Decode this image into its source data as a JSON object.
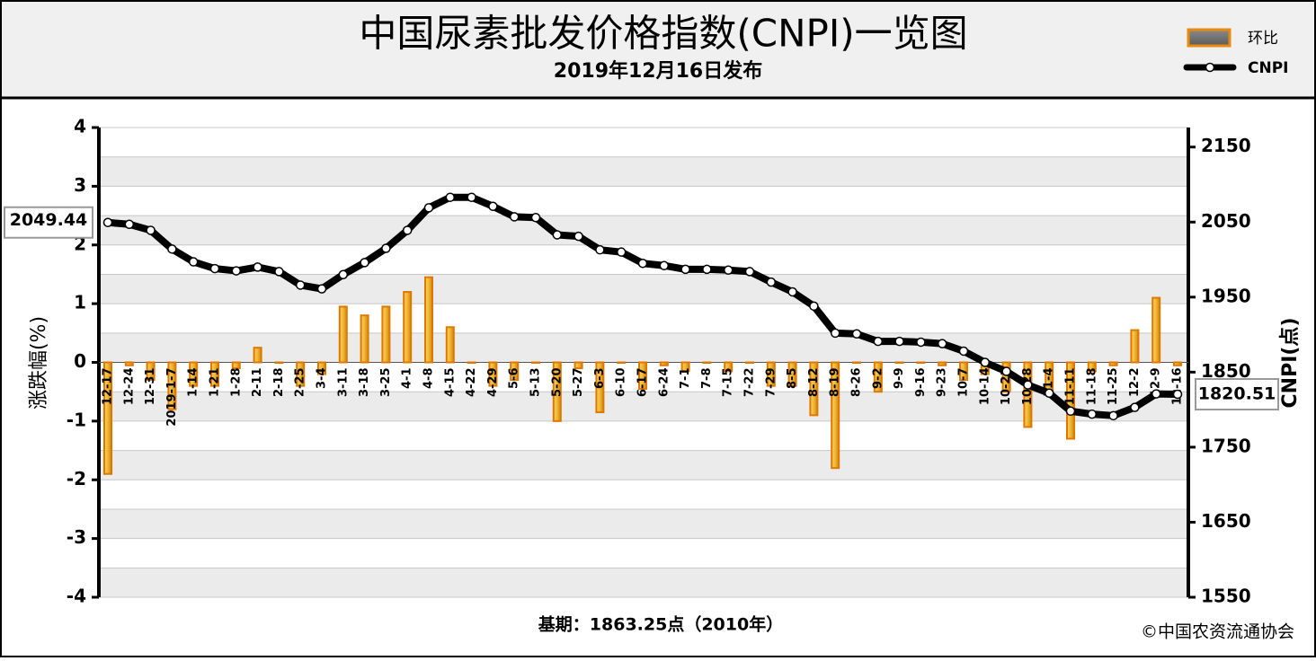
{
  "chart_data": {
    "type": "bar-line",
    "title": "中国尿素批发价格指数(CNPI)一览图",
    "subtitle": "2019年12月16日发布",
    "ylabel": "涨跌幅(%)",
    "y2label": "CNPI(点)",
    "footnote": "基期：1863.25点（2010年）",
    "source": "©中国农资流通协会",
    "categories": [
      "12-17",
      "12-24",
      "12-31",
      "2019-1-7",
      "1-14",
      "1-21",
      "1-28",
      "2-11",
      "2-18",
      "2-25",
      "3-4",
      "3-11",
      "3-18",
      "3-25",
      "4-1",
      "4-8",
      "4-15",
      "4-22",
      "4-29",
      "5-6",
      "5-13",
      "5-20",
      "5-27",
      "6-3",
      "6-10",
      "6-17",
      "6-24",
      "7-1",
      "7-8",
      "7-15",
      "7-22",
      "7-29",
      "8-5",
      "8-12",
      "8-19",
      "8-26",
      "9-2",
      "9-9",
      "9-16",
      "9-23",
      "10-7",
      "10-14",
      "10-21",
      "10-28",
      "11-4",
      "11-11",
      "11-18",
      "11-25",
      "12-2",
      "12-9",
      "12-16"
    ],
    "series": [
      {
        "name": "环比",
        "color": "#f2b631",
        "values": [
          -1.9,
          -0.05,
          -0.3,
          -0.8,
          -0.4,
          -0.4,
          -0.1,
          0.25,
          0,
          -0.4,
          -0.2,
          0.95,
          0.8,
          0.95,
          1.2,
          1.45,
          0.6,
          0,
          -0.4,
          -0.3,
          0,
          -1.0,
          -0.1,
          -0.85,
          0,
          -0.45,
          -0.05,
          -0.15,
          0,
          -0.15,
          0,
          -0.4,
          -0.4,
          -0.9,
          -1.8,
          0,
          -0.5,
          0,
          0,
          -0.05,
          -0.3,
          -0.2,
          -0.5,
          -1.1,
          -0.5,
          -1.3,
          -0.15,
          -0.05,
          0.55,
          1.1,
          -0.05
        ]
      },
      {
        "name": "CNPI",
        "color": "#000000",
        "axis": "y2",
        "values": [
          2049.44,
          2047,
          2039,
          2014,
          1997,
          1988,
          1985,
          1990,
          1984,
          1966,
          1961,
          1980,
          1996,
          2015,
          2039,
          2069,
          2083,
          2083,
          2071,
          2057,
          2056,
          2033,
          2031,
          2013,
          2010,
          1995,
          1992,
          1987,
          1987,
          1986,
          1984,
          1970,
          1957,
          1938,
          1902,
          1901,
          1891,
          1891,
          1890,
          1888,
          1878,
          1863,
          1851,
          1833,
          1822,
          1798,
          1794,
          1792,
          1803,
          1821,
          1820.51
        ]
      }
    ],
    "ylim": [
      -4,
      4
    ],
    "yticks": [
      -4,
      -3,
      -2,
      -1,
      0,
      1,
      2,
      3,
      4
    ],
    "y2lim": [
      1550,
      2176
    ],
    "y2ticks": [
      1550,
      1650,
      1750,
      1850,
      1950,
      2050,
      2150
    ],
    "grid": true,
    "legend": "top-right"
  }
}
